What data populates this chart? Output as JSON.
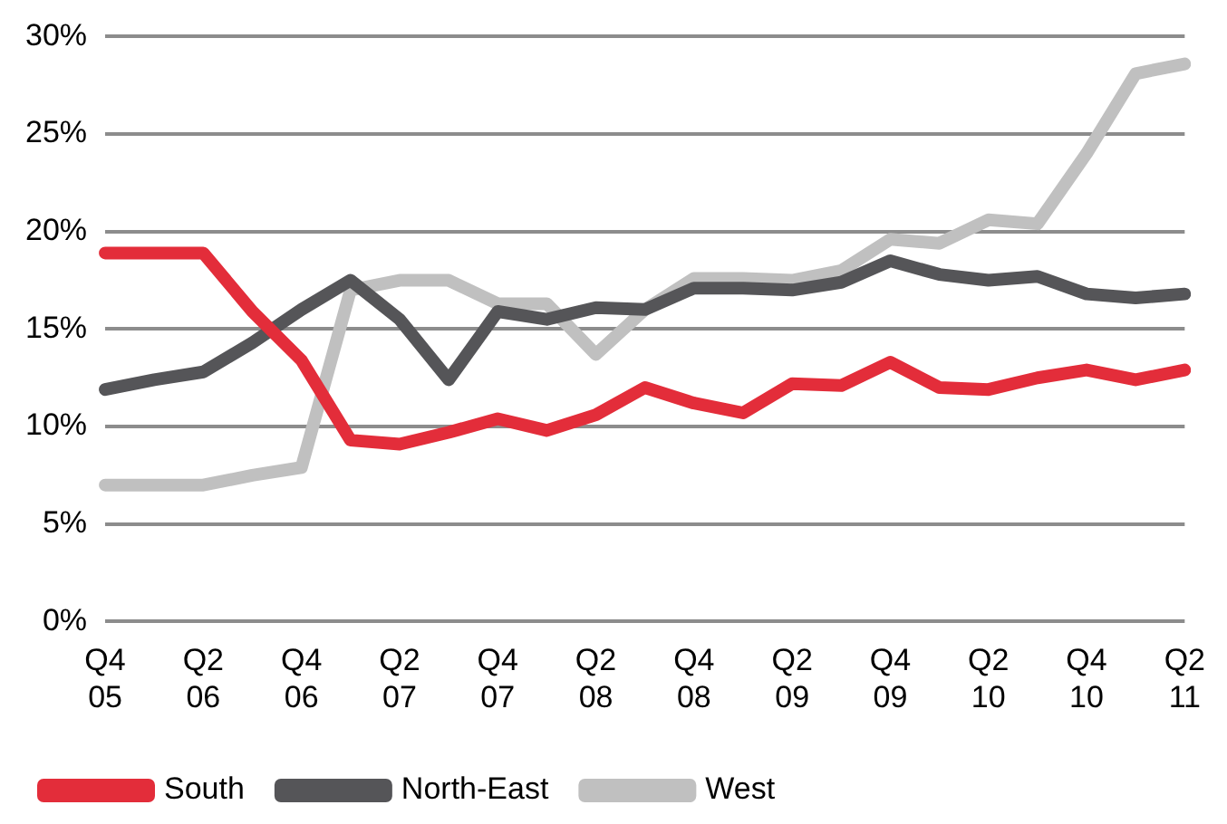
{
  "chart_data": {
    "type": "line",
    "categories": [
      "Q4 05",
      null,
      "Q2 06",
      null,
      "Q4 06",
      null,
      "Q2 07",
      null,
      "Q4 07",
      null,
      "Q2 08",
      null,
      "Q4 08",
      null,
      "Q2 09",
      null,
      "Q4 09",
      null,
      "Q2 10",
      null,
      "Q4 10",
      null,
      "Q2 11"
    ],
    "series": [
      {
        "name": "South",
        "color": "#e32d3a",
        "values": [
          18.9,
          18.9,
          18.9,
          15.9,
          13.4,
          9.3,
          9.1,
          9.7,
          10.4,
          9.8,
          10.6,
          12.0,
          11.2,
          10.7,
          12.2,
          12.1,
          13.3,
          12.0,
          11.9,
          12.5,
          12.9,
          12.4,
          12.9
        ]
      },
      {
        "name": "North-East",
        "color": "#555558",
        "values": [
          11.9,
          12.4,
          12.8,
          14.3,
          16.0,
          17.5,
          15.5,
          12.4,
          15.9,
          15.5,
          16.1,
          16.0,
          17.1,
          17.1,
          17.0,
          17.4,
          18.5,
          17.8,
          17.5,
          17.7,
          16.8,
          16.6,
          16.8
        ]
      },
      {
        "name": "West",
        "color": "#c0c0c0",
        "values": [
          7.0,
          7.0,
          7.0,
          7.5,
          7.9,
          17.0,
          17.5,
          17.5,
          16.3,
          16.3,
          13.7,
          16.0,
          17.6,
          17.6,
          17.5,
          18.0,
          19.6,
          19.4,
          20.6,
          20.4,
          24.0,
          28.1,
          28.6
        ]
      }
    ],
    "ylim": [
      0,
      30
    ],
    "yticks": [
      {
        "value": 0,
        "label": "0%"
      },
      {
        "value": 5,
        "label": "5%"
      },
      {
        "value": 10,
        "label": "10%"
      },
      {
        "value": 15,
        "label": "15%"
      },
      {
        "value": 20,
        "label": "20%"
      },
      {
        "value": 25,
        "label": "25%"
      },
      {
        "value": 30,
        "label": "30%"
      }
    ],
    "grid": "y",
    "legend": "bottom",
    "marker": "none",
    "line_style": "solid"
  }
}
